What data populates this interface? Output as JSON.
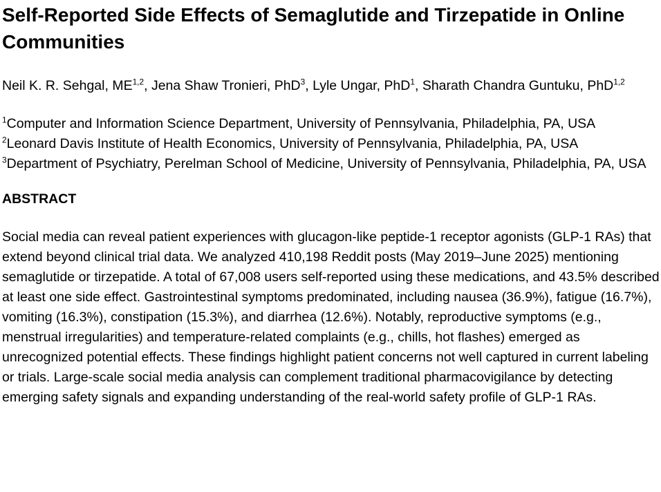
{
  "colors": {
    "background": "#ffffff",
    "text": "#000000"
  },
  "title": "Self-Reported Side Effects of Semaglutide and Tirzepatide in Online Communities",
  "authors": [
    {
      "name": "Neil K. R. Sehgal, ME",
      "sup": "1,2",
      "sep": ", "
    },
    {
      "name": "Jena Shaw Tronieri, PhD",
      "sup": "3",
      "sep": ", "
    },
    {
      "name": "Lyle Ungar, PhD",
      "sup": "1",
      "sep": ", "
    },
    {
      "name": "Sharath Chandra Guntuku, PhD",
      "sup": "1,2",
      "sep": ""
    }
  ],
  "affiliations": [
    {
      "sup": "1",
      "text": "Computer and Information Science Department, University of Pennsylvania, Philadelphia, PA, USA"
    },
    {
      "sup": "2",
      "text": "Leonard Davis Institute of Health Economics, University of Pennsylvania, Philadelphia, PA, USA"
    },
    {
      "sup": "3",
      "text": "Department of Psychiatry, Perelman School of Medicine, University of Pennsylvania, Philadelphia, PA, USA"
    }
  ],
  "abstract_heading": "ABSTRACT",
  "abstract_text": "Social media can reveal patient experiences with glucagon-like peptide-1 receptor agonists (GLP-1 RAs) that extend beyond clinical trial data. We analyzed 410,198 Reddit posts (May 2019–June 2025) mentioning semaglutide or tirzepatide. A total of 67,008 users self-reported using these medications, and 43.5% described at least one side effect. Gastrointestinal symptoms predominated, including nausea (36.9%), fatigue (16.7%), vomiting (16.3%), constipation (15.3%), and diarrhea (12.6%). Notably, reproductive symptoms (e.g., menstrual irregularities) and temperature-related complaints (e.g., chills, hot flashes) emerged as unrecognized potential effects. These findings highlight patient concerns not well captured in current labeling or trials. Large-scale social media analysis can complement traditional pharmacovigilance by detecting emerging safety signals and expanding understanding of the real-world safety profile of GLP-1 RAs."
}
